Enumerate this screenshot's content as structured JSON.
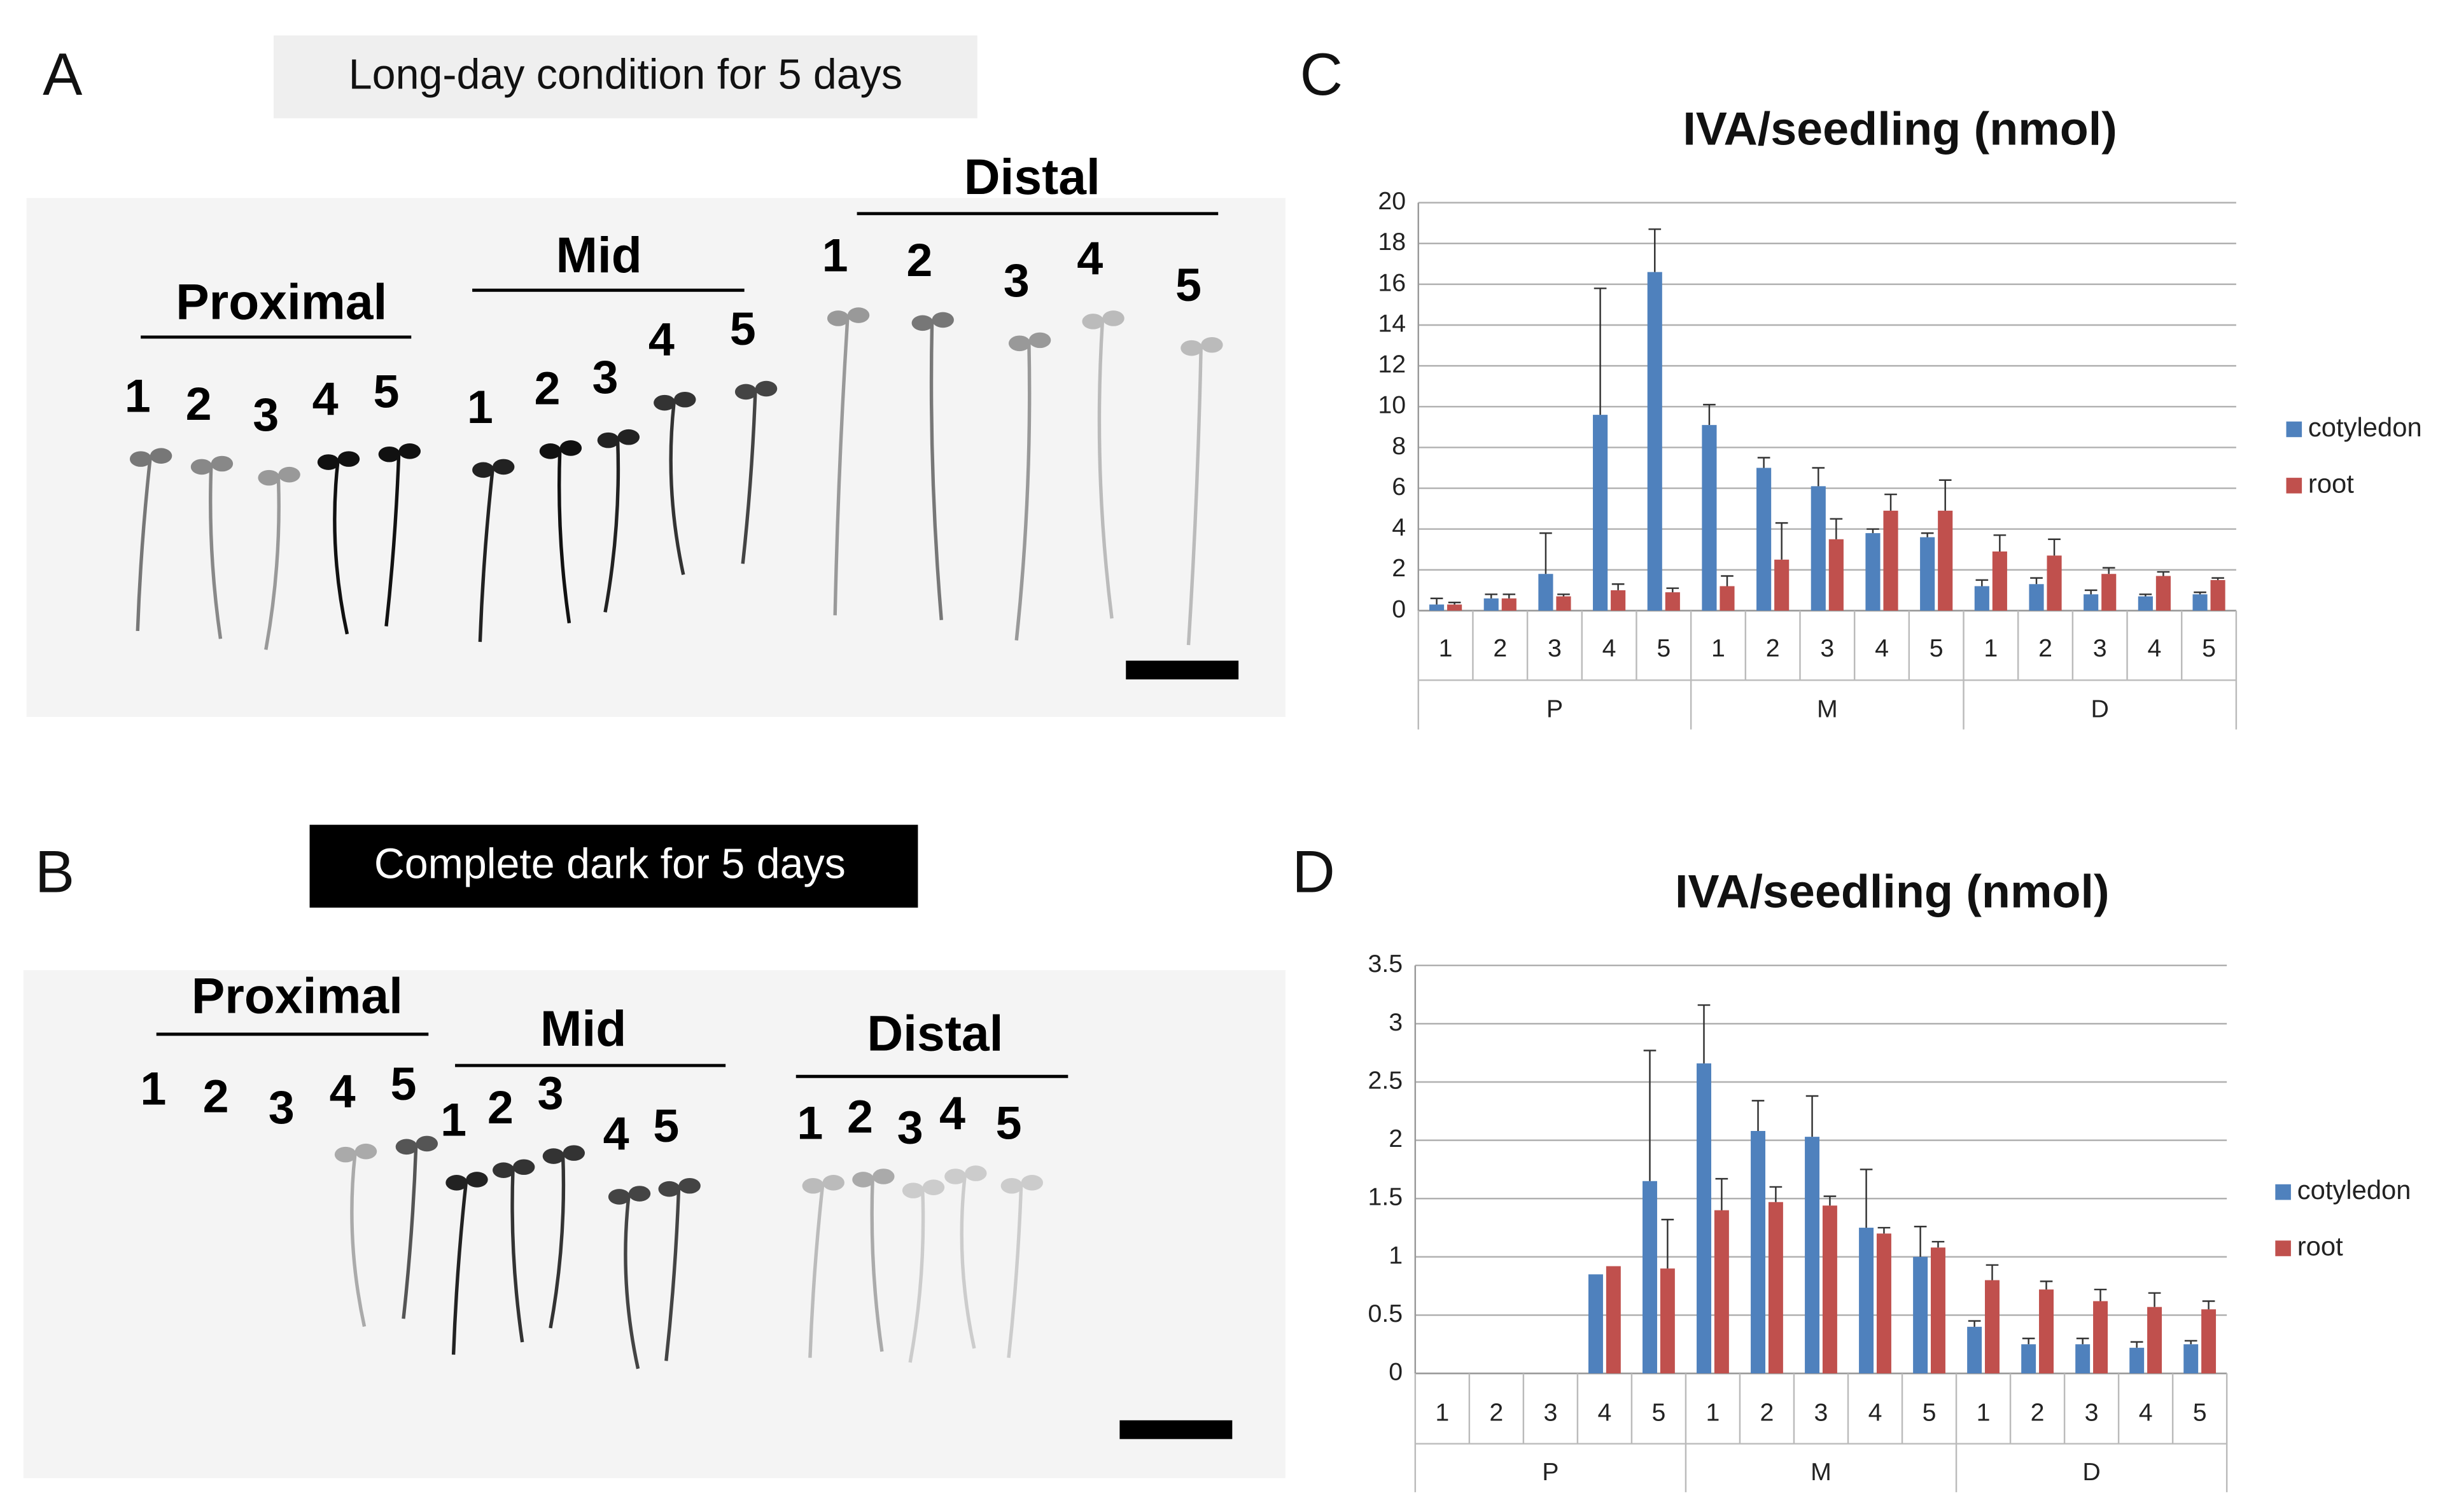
{
  "photo_panels": [
    {
      "panel": "A",
      "condition": "Long-day condition for 5 days",
      "groups": [
        {
          "name": "Proximal",
          "seedlings": [
            "1",
            "2",
            "3",
            "4",
            "5"
          ]
        },
        {
          "name": "Mid",
          "seedlings": [
            "1",
            "2",
            "3",
            "4",
            "5"
          ]
        },
        {
          "name": "Distal",
          "seedlings": [
            "1",
            "2",
            "3",
            "4",
            "5"
          ]
        }
      ]
    },
    {
      "panel": "B",
      "condition": "Complete dark for 5 days",
      "groups": [
        {
          "name": "Proximal",
          "seedlings": [
            "1",
            "2",
            "3",
            "4",
            "5"
          ]
        },
        {
          "name": "Mid",
          "seedlings": [
            "1",
            "2",
            "3",
            "4",
            "5"
          ]
        },
        {
          "name": "Distal",
          "seedlings": [
            "1",
            "2",
            "3",
            "4",
            "5"
          ]
        }
      ]
    }
  ],
  "chart_data": [
    {
      "type": "bar",
      "panel": "C",
      "title": "IVA/seedling (nmol)",
      "categories": [
        "1",
        "2",
        "3",
        "4",
        "5",
        "1",
        "2",
        "3",
        "4",
        "5",
        "1",
        "2",
        "3",
        "4",
        "5"
      ],
      "groups": [
        "P",
        "M",
        "D"
      ],
      "series": [
        {
          "name": "cotyledon",
          "color": "#4f81bd",
          "values": [
            0.3,
            0.6,
            1.8,
            9.6,
            16.6,
            9.1,
            7.0,
            6.1,
            3.8,
            3.6,
            1.2,
            1.3,
            0.8,
            0.7,
            0.8
          ],
          "errors": [
            0.3,
            0.2,
            2.0,
            6.2,
            2.1,
            1.0,
            0.5,
            0.9,
            0.2,
            0.2,
            0.3,
            0.3,
            0.2,
            0.1,
            0.1
          ]
        },
        {
          "name": "root",
          "color": "#c0504d",
          "values": [
            0.3,
            0.6,
            0.7,
            1.0,
            0.9,
            1.2,
            2.5,
            3.5,
            4.9,
            4.9,
            2.9,
            2.7,
            1.8,
            1.7,
            1.5
          ],
          "errors": [
            0.1,
            0.2,
            0.1,
            0.3,
            0.2,
            0.5,
            1.8,
            1.0,
            0.8,
            1.5,
            0.8,
            0.8,
            0.3,
            0.2,
            0.1
          ]
        }
      ],
      "ylim": [
        0,
        20
      ],
      "yticks": [
        0,
        2,
        4,
        6,
        8,
        10,
        12,
        14,
        16,
        18,
        20
      ],
      "grid": true,
      "legend": "right"
    },
    {
      "type": "bar",
      "panel": "D",
      "title": "IVA/seedling (nmol)",
      "categories": [
        "1",
        "2",
        "3",
        "4",
        "5",
        "1",
        "2",
        "3",
        "4",
        "5",
        "1",
        "2",
        "3",
        "4",
        "5"
      ],
      "groups": [
        "P",
        "M",
        "D"
      ],
      "series": [
        {
          "name": "cotyledon",
          "color": "#4f81bd",
          "values": [
            null,
            null,
            null,
            0.85,
            1.65,
            2.66,
            2.08,
            2.03,
            1.25,
            1.0,
            0.4,
            0.25,
            0.25,
            0.22,
            0.25
          ],
          "errors": [
            null,
            null,
            null,
            null,
            1.12,
            0.5,
            0.26,
            0.35,
            0.5,
            0.26,
            0.05,
            0.05,
            0.05,
            0.05,
            0.03
          ]
        },
        {
          "name": "root",
          "color": "#c0504d",
          "values": [
            null,
            null,
            null,
            0.92,
            0.9,
            1.4,
            1.47,
            1.44,
            1.2,
            1.08,
            0.8,
            0.72,
            0.62,
            0.57,
            0.55
          ],
          "errors": [
            null,
            null,
            null,
            null,
            0.42,
            0.27,
            0.13,
            0.08,
            0.05,
            0.05,
            0.13,
            0.07,
            0.1,
            0.12,
            0.07
          ]
        }
      ],
      "ylim": [
        0,
        3.5
      ],
      "yticks": [
        0,
        0.5,
        1,
        1.5,
        2,
        2.5,
        3,
        3.5
      ],
      "grid": true,
      "legend": "right"
    }
  ]
}
